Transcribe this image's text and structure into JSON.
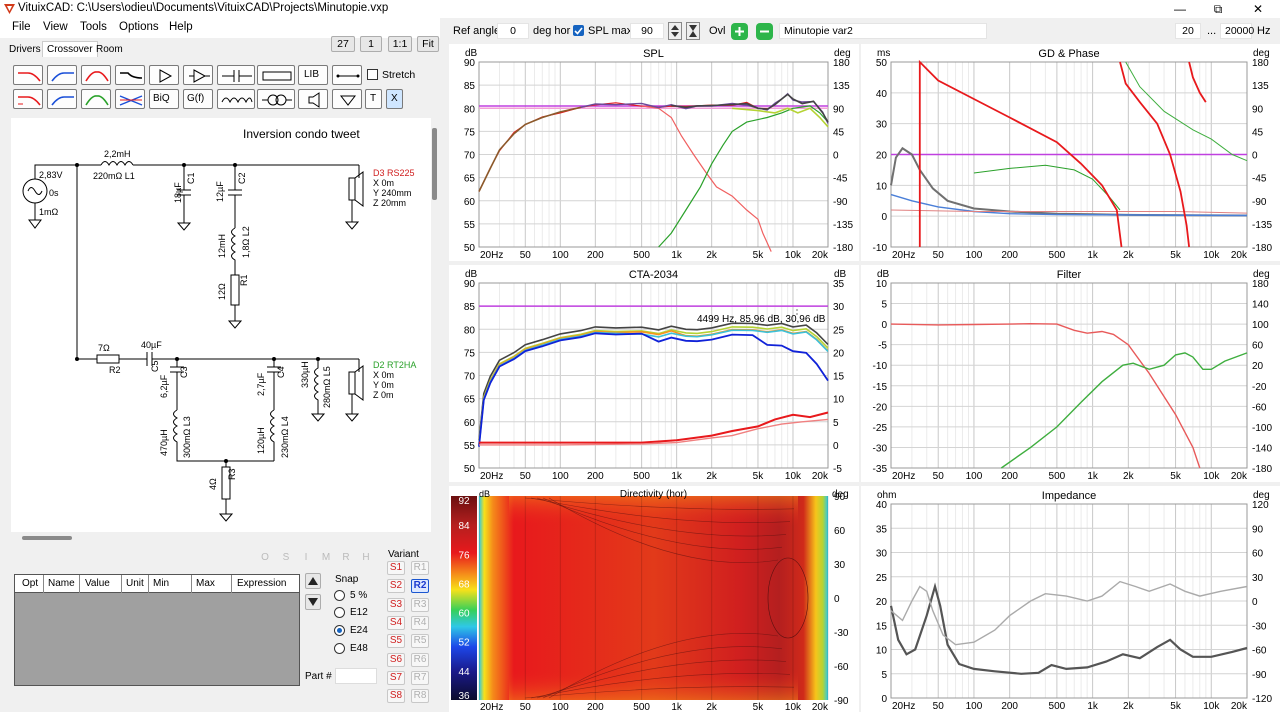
{
  "window": {
    "title": "VituixCAD: C:\\Users\\odieu\\Documents\\VituixCAD\\Projects\\Minutopie.vxp",
    "controls": [
      "—",
      "⧉",
      "✕"
    ]
  },
  "menu": [
    "File",
    "View",
    "Tools",
    "Options",
    "Help"
  ],
  "tabs": [
    "Drivers",
    "Crossover",
    "Room"
  ],
  "zoom": {
    "value": "27",
    "b1": "1",
    "b2": "1:1",
    "fit": "Fit"
  },
  "toolbox": {
    "lib": "LIB",
    "biq": "BiQ",
    "gf": "G(f)",
    "t": "T",
    "x": "X",
    "stretch": "Stretch"
  },
  "schematic": {
    "title": "Inversion condo tweet",
    "source": {
      "v": "2,83V",
      "t": "0s",
      "r": "1mΩ"
    },
    "l1": {
      "val": "2,2mH",
      "sub": "220mΩ L1"
    },
    "c1": {
      "val": "18µF",
      "name": "C1"
    },
    "c2": {
      "val": "12µF",
      "name": "C2"
    },
    "l2": {
      "val": "12mH",
      "sub": "1,8Ω L2"
    },
    "r1": {
      "val": "12Ω",
      "name": "R1"
    },
    "d3": {
      "name": "D3 RS225",
      "x": "X 0m",
      "y": "Y 240mm",
      "z": "Z 20mm"
    },
    "r2": {
      "val": "7Ω",
      "name": "R2"
    },
    "c5": {
      "val": "40µF",
      "name": "C5"
    },
    "c3": {
      "val": "6,2µF",
      "name": "C3"
    },
    "c4": {
      "val": "2,7µF",
      "name": "C4"
    },
    "l5": {
      "val": "330µH",
      "sub": "280mΩ L5"
    },
    "d2": {
      "name": "D2 RT2HA",
      "x": "X 0m",
      "y": "Y 0m",
      "z": "Z 0m"
    },
    "l3": {
      "val": "470µH",
      "sub": "300mΩ L3"
    },
    "l4": {
      "val": "120µH",
      "sub": "230mΩ L4"
    },
    "r3": {
      "val": "4Ω",
      "name": "R3"
    }
  },
  "omsbuttons": [
    "O",
    "S",
    "I",
    "M",
    "R",
    "H"
  ],
  "params": {
    "columns": [
      "Opt",
      "Name",
      "Value",
      "Unit",
      "Min",
      "Max",
      "Expression"
    ]
  },
  "snap": {
    "label": "Snap",
    "options": [
      "5 %",
      "E12",
      "E24",
      "E48"
    ],
    "selected": "E24"
  },
  "part": {
    "label": "Part #"
  },
  "variant": {
    "label": "Variant",
    "s": [
      "S1",
      "S2",
      "S3",
      "S4",
      "S5",
      "S6",
      "S7",
      "S8"
    ],
    "r": [
      "R1",
      "R2",
      "R3",
      "R4",
      "R5",
      "R6",
      "R7",
      "R8"
    ],
    "active_r": "R2"
  },
  "toolbar": {
    "ref_angle_label": "Ref angle",
    "ref_angle": "0",
    "deg_hor": "deg hor",
    "spl_max_label": "SPL max",
    "spl_max": "90",
    "ovl": "Ovl",
    "variant_name": "Minutopie var2",
    "f_min": "20",
    "dots": "...",
    "f_max": "20000",
    "hz": "Hz"
  },
  "colors": {
    "red": "#e8191c",
    "green": "#2aa12a",
    "gray": "#555555",
    "blue": "#1022d8",
    "magenta": "#c040e0",
    "orange": "#f7941d"
  },
  "charts": {
    "spl": {
      "title": "SPL",
      "lunit": "dB",
      "runit": "deg",
      "yl": [
        "90",
        "85",
        "80",
        "75",
        "70",
        "65",
        "60",
        "55",
        "50"
      ],
      "yr": [
        "180",
        "135",
        "90",
        "45",
        "0",
        "-45",
        "-90",
        "-135",
        "-180"
      ],
      "xt": [
        "20Hz",
        "50",
        "100",
        "200",
        "500",
        "1k",
        "2k",
        "5k",
        "10k",
        "20k"
      ]
    },
    "gd": {
      "title": "GD & Phase",
      "lunit": "ms",
      "runit": "deg",
      "yl": [
        "50",
        "40",
        "30",
        "20",
        "10",
        "0",
        "-10"
      ],
      "yr": [
        "180",
        "135",
        "90",
        "45",
        "0",
        "-45",
        "-90",
        "-135",
        "-180"
      ],
      "xt": [
        "20Hz",
        "50",
        "100",
        "200",
        "500",
        "1k",
        "2k",
        "5k",
        "10k",
        "20k"
      ]
    },
    "cta": {
      "title": "CTA-2034",
      "lunit": "dB",
      "runit": "dB",
      "yl": [
        "90",
        "85",
        "80",
        "75",
        "70",
        "65",
        "60",
        "55",
        "50"
      ],
      "yr": [
        "35",
        "30",
        "25",
        "20",
        "15",
        "10",
        "5",
        "0",
        "-5"
      ],
      "xt": [
        "20Hz",
        "50",
        "100",
        "200",
        "500",
        "1k",
        "2k",
        "5k",
        "10k",
        "20k"
      ],
      "readout": "4499 Hz, 85,96 dB, 30,96 dB"
    },
    "filter": {
      "title": "Filter",
      "lunit": "dB",
      "runit": "deg",
      "yl": [
        "10",
        "5",
        "0",
        "-5",
        "-10",
        "-15",
        "-20",
        "-25",
        "-30",
        "-35"
      ],
      "yr": [
        "180",
        "140",
        "100",
        "60",
        "20",
        "-20",
        "-60",
        "-100",
        "-140",
        "-180"
      ],
      "xt": [
        "20Hz",
        "50",
        "100",
        "200",
        "500",
        "1k",
        "2k",
        "5k",
        "10k",
        "20k"
      ]
    },
    "dir": {
      "title": "Directivity (hor)",
      "lunit": "dB",
      "runit": "deg",
      "scale": [
        "92",
        "84",
        "76",
        "68",
        "60",
        "52",
        "44",
        "36"
      ],
      "yr": [
        "90",
        "60",
        "30",
        "0",
        "-30",
        "-60",
        "-90"
      ],
      "xt": [
        "20Hz",
        "50",
        "100",
        "200",
        "500",
        "1k",
        "2k",
        "5k",
        "10k",
        "20k"
      ]
    },
    "imp": {
      "title": "Impedance",
      "lunit": "ohm",
      "runit": "deg",
      "yl": [
        "40",
        "35",
        "30",
        "25",
        "20",
        "15",
        "10",
        "5",
        "0"
      ],
      "yr": [
        "120",
        "90",
        "60",
        "30",
        "0",
        "-30",
        "-60",
        "-90",
        "-120"
      ],
      "xt": [
        "20Hz",
        "50",
        "100",
        "200",
        "500",
        "1k",
        "2k",
        "5k",
        "10k",
        "20k"
      ]
    }
  }
}
